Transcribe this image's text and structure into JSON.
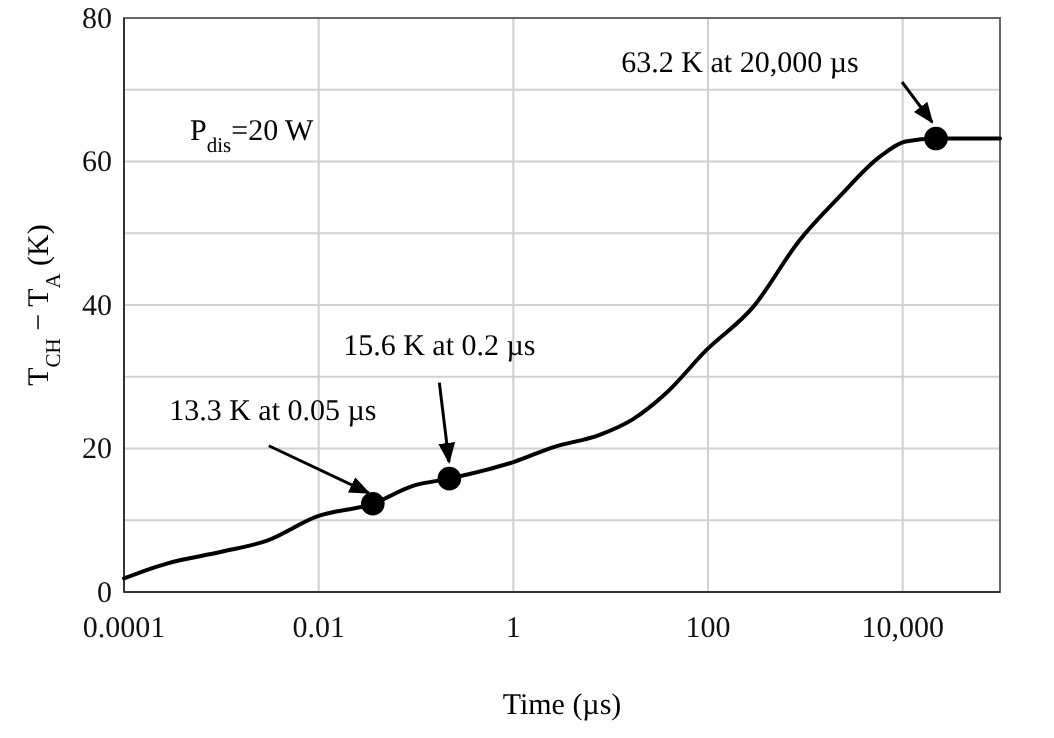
{
  "chart_data": {
    "type": "line",
    "xlabel": "Time (µs)",
    "ylabel": "T$_{CH}$ − T$_{A}$ (K)",
    "log": "x",
    "grid": true,
    "marker": "none",
    "line_style": "solid",
    "xlim": [
      0.0001,
      100000
    ],
    "xticks": [
      0.0001,
      0.01,
      1,
      100,
      {
        "value": 10000,
        "label": "10,000"
      }
    ],
    "ylim": [
      0,
      80
    ],
    "yticks": [
      0,
      {
        "value": 10,
        "label": null
      },
      20,
      {
        "value": 30,
        "label": null
      },
      40,
      {
        "value": 50,
        "label": null
      },
      60,
      {
        "value": 70,
        "label": null
      },
      80
    ],
    "series": [
      {
        "type": "line",
        "color": "#000000",
        "x": [
          0.0001,
          0.00028,
          0.001,
          0.003,
          0.0095,
          0.036,
          0.093,
          0.22,
          1,
          2.6,
          7.7,
          17,
          37,
          96,
          290,
          870,
          2240,
          5750,
          10700,
          22000,
          100000
        ],
        "values": [
          1.9,
          4.0,
          5.6,
          7.2,
          10.5,
          12.3,
          14.8,
          15.8,
          18.1,
          20.2,
          21.9,
          24.1,
          27.7,
          33.7,
          39.7,
          49,
          55.1,
          60.6,
          62.8,
          63.2,
          63.2
        ]
      },
      {
        "type": "scatter",
        "marker": "circle",
        "color": "#000000",
        "x": [
          0.036,
          0.22,
          22000
        ],
        "values": [
          12.3,
          15.8,
          63.2
        ]
      }
    ],
    "annotations": [
      {
        "text": "13.3 K at 0.05 µs",
        "x": 0.036,
        "y": 12.3
      },
      {
        "text": "15.6 K at 0.2 µs",
        "x": 0.22,
        "y": 15.8
      },
      "63.2 K at 20,000 µs",
      "P$_{dis}$=20 W"
    ]
  }
}
